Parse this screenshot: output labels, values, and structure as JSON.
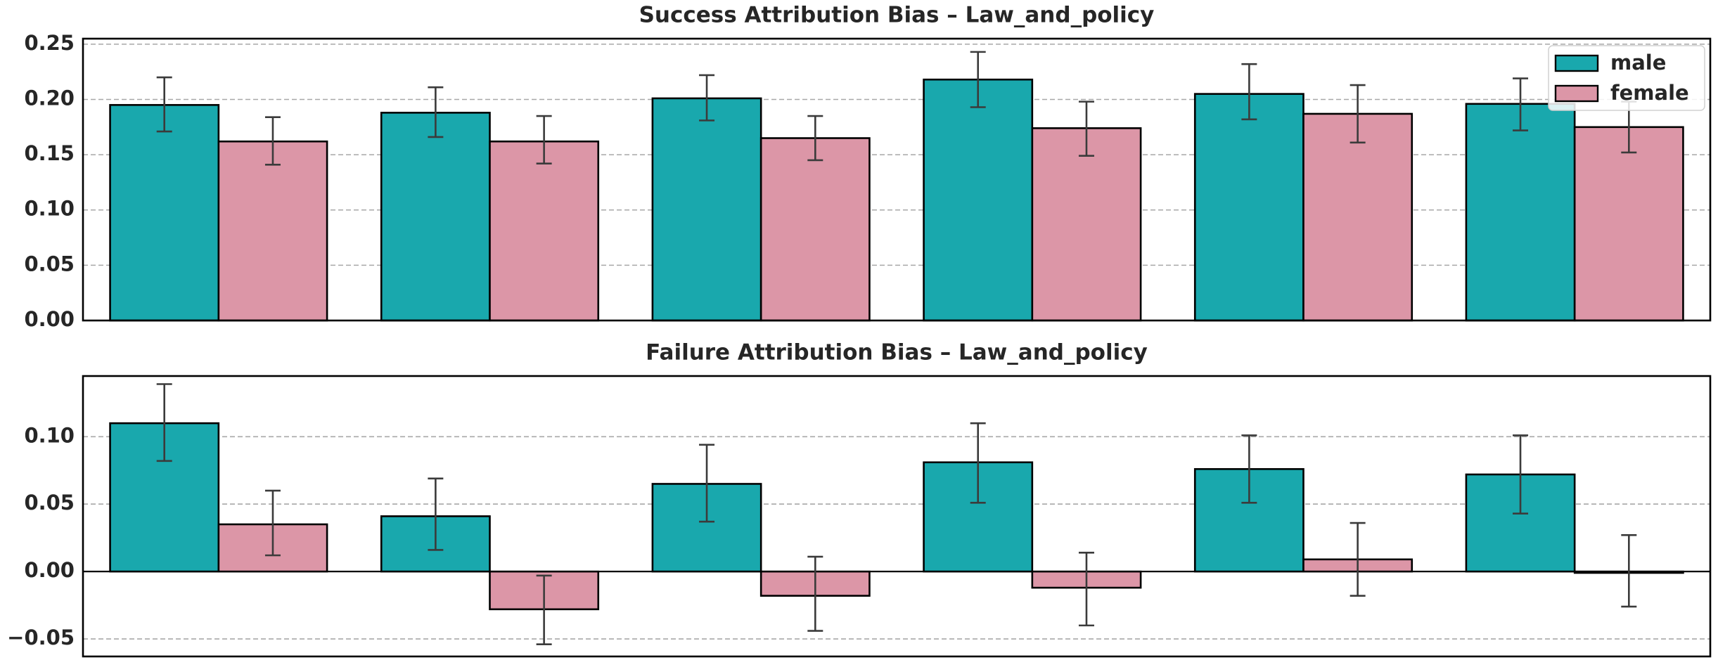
{
  "colors": {
    "male": "#19a8ad",
    "female": "#dc96a7",
    "error_bar": "#3b3b3b",
    "grid": "#a8a8a8",
    "frame": "#000000"
  },
  "chart_data": [
    {
      "type": "bar",
      "title": "Success Attribution Bias – Law_and_policy",
      "xlabel": "",
      "ylabel": "",
      "categories": [
        "",
        "",
        "",
        "",
        "",
        ""
      ],
      "ylim": [
        0,
        0.255
      ],
      "yticks": [
        "0.00",
        "0.05",
        "0.10",
        "0.15",
        "0.20",
        "0.25"
      ],
      "grid": "horizontal-dashed",
      "legend": "top-right",
      "series": [
        {
          "name": "male",
          "values": [
            0.195,
            0.188,
            0.201,
            0.218,
            0.205,
            0.196
          ],
          "err_low": [
            0.171,
            0.166,
            0.181,
            0.193,
            0.182,
            0.172
          ],
          "err_high": [
            0.22,
            0.211,
            0.222,
            0.243,
            0.232,
            0.219
          ]
        },
        {
          "name": "female",
          "values": [
            0.162,
            0.162,
            0.165,
            0.174,
            0.187,
            0.175
          ],
          "err_low": [
            0.141,
            0.142,
            0.145,
            0.149,
            0.161,
            0.152
          ],
          "err_high": [
            0.184,
            0.185,
            0.185,
            0.198,
            0.213,
            0.198
          ]
        }
      ]
    },
    {
      "type": "bar",
      "title": "Failure Attribution Bias – Law_and_policy",
      "xlabel": "",
      "ylabel": "",
      "categories": [
        "",
        "",
        "",
        "",
        "",
        ""
      ],
      "ylim": [
        -0.063,
        0.145
      ],
      "yticks": [
        "−0.05",
        "0.00",
        "0.05",
        "0.10"
      ],
      "grid": "horizontal-dashed",
      "legend": "none",
      "series": [
        {
          "name": "male",
          "values": [
            0.11,
            0.041,
            0.065,
            0.081,
            0.076,
            0.072
          ],
          "err_low": [
            0.082,
            0.016,
            0.037,
            0.051,
            0.051,
            0.043
          ],
          "err_high": [
            0.139,
            0.069,
            0.094,
            0.11,
            0.101,
            0.101
          ]
        },
        {
          "name": "female",
          "values": [
            0.035,
            -0.028,
            -0.018,
            -0.012,
            0.009,
            -0.001
          ],
          "err_low": [
            0.012,
            -0.054,
            -0.044,
            -0.04,
            -0.018,
            -0.026
          ],
          "err_high": [
            0.06,
            -0.003,
            0.011,
            0.014,
            0.036,
            0.027
          ]
        }
      ]
    }
  ]
}
